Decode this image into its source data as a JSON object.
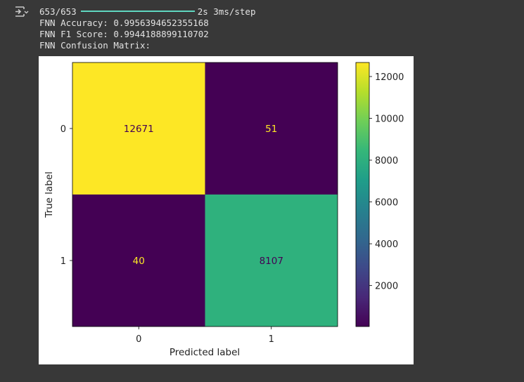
{
  "output": {
    "icon": "output-toggle-icon",
    "progress_count": "653/653",
    "progress_fraction": 1.0,
    "progress_time": "2s 3ms/step",
    "accuracy_line": "FNN Accuracy: 0.9956394652355168",
    "f1_line": "FNN F1 Score: 0.9944188899110702",
    "cm_title_line": "FNN Confusion Matrix:"
  },
  "chart_data": {
    "type": "heatmap",
    "xlabel": "Predicted label",
    "ylabel": "True label",
    "x_categories": [
      "0",
      "1"
    ],
    "y_categories": [
      "0",
      "1"
    ],
    "matrix": [
      [
        12671,
        51
      ],
      [
        40,
        8107
      ]
    ],
    "cell_text_colors": [
      [
        "#440154",
        "#fde725"
      ],
      [
        "#fde725",
        "#440154"
      ]
    ],
    "colormap": "viridis",
    "colorbar": {
      "min": 40,
      "max": 12671,
      "ticks": [
        2000,
        4000,
        6000,
        8000,
        10000,
        12000
      ],
      "tick_labels": [
        "2000",
        "4000",
        "6000",
        "8000",
        "10000",
        "12000"
      ]
    },
    "colors": {
      "viridis": [
        "#440154",
        "#482878",
        "#3e4989",
        "#31688e",
        "#26828e",
        "#1f9e89",
        "#35b779",
        "#6ece58",
        "#b5de2b",
        "#fde725"
      ]
    },
    "grid": false
  }
}
